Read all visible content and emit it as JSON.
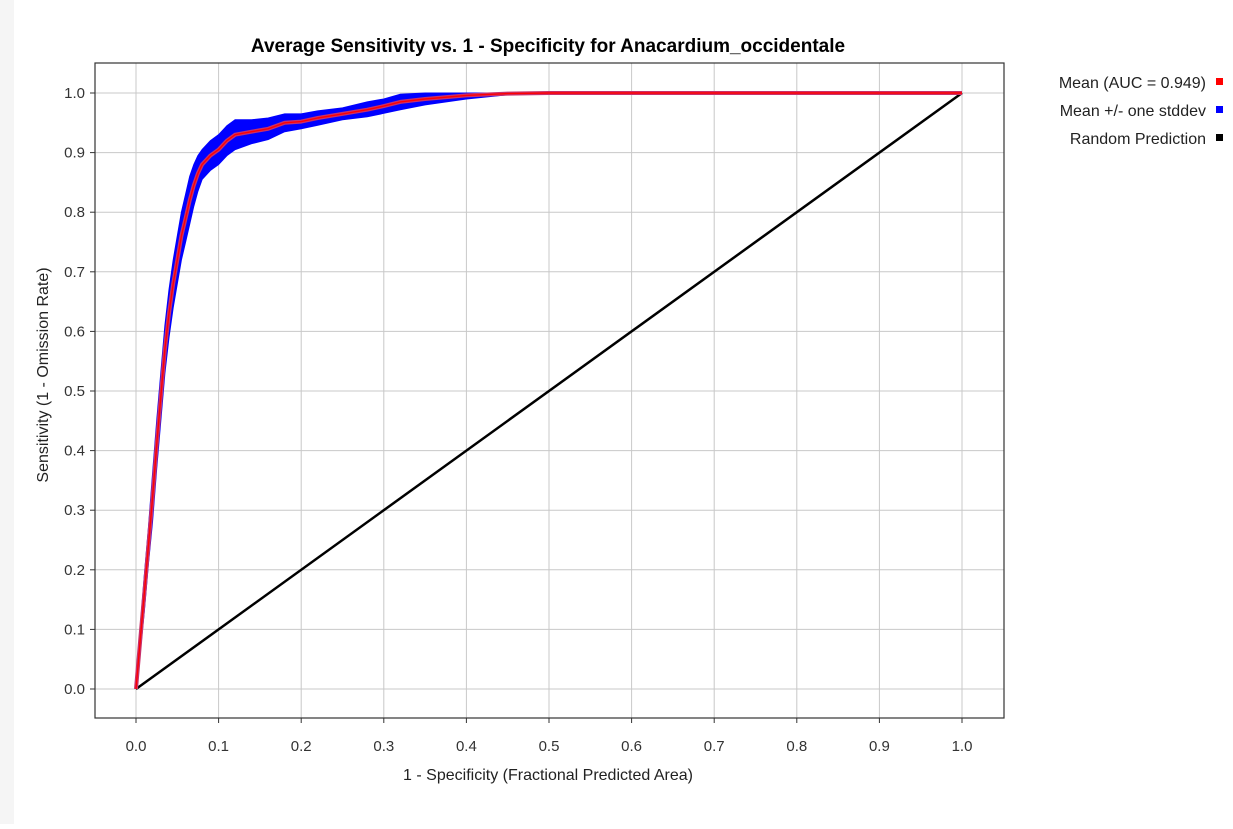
{
  "chart_data": {
    "type": "line",
    "title": "Average Sensitivity vs. 1 - Specificity for Anacardium_occidentale",
    "xlabel": "1 - Specificity (Fractional Predicted Area)",
    "ylabel": "Sensitivity (1 - Omission Rate)",
    "xlim": [
      0,
      1
    ],
    "ylim": [
      0,
      1
    ],
    "x_ticks": [
      "0.0",
      "0.1",
      "0.2",
      "0.3",
      "0.4",
      "0.5",
      "0.6",
      "0.7",
      "0.8",
      "0.9",
      "1.0"
    ],
    "y_ticks": [
      "0.0",
      "0.1",
      "0.2",
      "0.3",
      "0.4",
      "0.5",
      "0.6",
      "0.7",
      "0.8",
      "0.9",
      "1.0"
    ],
    "grid": true,
    "legend_position": "right-top",
    "series": [
      {
        "name": "Mean (AUC = 0.949)",
        "color": "#ff0000",
        "x": [
          0.0,
          0.005,
          0.01,
          0.015,
          0.02,
          0.025,
          0.03,
          0.035,
          0.04,
          0.045,
          0.05,
          0.055,
          0.06,
          0.065,
          0.07,
          0.075,
          0.08,
          0.09,
          0.1,
          0.11,
          0.12,
          0.14,
          0.16,
          0.18,
          0.2,
          0.22,
          0.25,
          0.28,
          0.3,
          0.32,
          0.35,
          0.4,
          0.45,
          0.5,
          0.6,
          0.7,
          0.8,
          0.9,
          1.0
        ],
        "y": [
          0.0,
          0.08,
          0.16,
          0.24,
          0.32,
          0.41,
          0.49,
          0.57,
          0.63,
          0.68,
          0.72,
          0.76,
          0.79,
          0.82,
          0.845,
          0.865,
          0.88,
          0.895,
          0.905,
          0.92,
          0.93,
          0.935,
          0.94,
          0.95,
          0.952,
          0.958,
          0.965,
          0.972,
          0.978,
          0.985,
          0.99,
          0.996,
          0.999,
          1.0,
          1.0,
          1.0,
          1.0,
          1.0,
          1.0
        ]
      },
      {
        "name": "Mean +/- one stddev",
        "color": "#0000ff",
        "x": [
          0.0,
          0.005,
          0.01,
          0.015,
          0.02,
          0.025,
          0.03,
          0.035,
          0.04,
          0.045,
          0.05,
          0.055,
          0.06,
          0.065,
          0.07,
          0.075,
          0.08,
          0.09,
          0.1,
          0.11,
          0.12,
          0.14,
          0.16,
          0.18,
          0.2,
          0.22,
          0.25,
          0.28,
          0.3,
          0.32,
          0.35,
          0.4,
          0.45,
          0.5,
          0.6,
          0.7,
          0.8,
          0.9,
          1.0
        ],
        "upper": [
          0.0,
          0.1,
          0.19,
          0.27,
          0.36,
          0.45,
          0.53,
          0.61,
          0.67,
          0.72,
          0.76,
          0.8,
          0.83,
          0.86,
          0.88,
          0.895,
          0.905,
          0.92,
          0.93,
          0.945,
          0.955,
          0.955,
          0.958,
          0.965,
          0.965,
          0.97,
          0.975,
          0.985,
          0.99,
          0.998,
          1.0,
          1.0,
          1.0,
          1.0,
          1.0,
          1.0,
          1.0,
          1.0,
          1.0
        ],
        "lower": [
          0.0,
          0.06,
          0.13,
          0.21,
          0.28,
          0.37,
          0.45,
          0.53,
          0.59,
          0.64,
          0.68,
          0.72,
          0.75,
          0.78,
          0.81,
          0.835,
          0.855,
          0.87,
          0.88,
          0.895,
          0.905,
          0.915,
          0.922,
          0.935,
          0.94,
          0.946,
          0.955,
          0.96,
          0.966,
          0.972,
          0.98,
          0.99,
          0.997,
          1.0,
          1.0,
          1.0,
          1.0,
          1.0,
          1.0
        ]
      },
      {
        "name": "Random Prediction",
        "color": "#000000",
        "x": [
          0.0,
          1.0
        ],
        "y": [
          0.0,
          1.0
        ]
      }
    ]
  }
}
